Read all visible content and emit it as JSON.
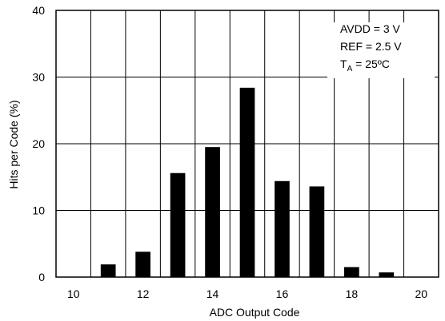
{
  "chart_data": {
    "type": "bar",
    "x": [
      10,
      11,
      12,
      13,
      14,
      15,
      16,
      17,
      18,
      19,
      20
    ],
    "values": [
      0,
      1.9,
      3.8,
      15.6,
      19.5,
      28.4,
      14.4,
      13.6,
      1.5,
      0.7,
      0
    ],
    "xlabel": "ADC Output Code",
    "ylabel": "Hits per Code (%)",
    "xlim": [
      9.5,
      20.5
    ],
    "ylim": [
      0,
      40
    ],
    "xticks": [
      10,
      12,
      14,
      16,
      18,
      20
    ],
    "yticks": [
      0,
      10,
      20,
      30,
      40
    ],
    "grid": true,
    "bar_color": "#000000",
    "annotations": {
      "line1": "AVDD = 3 V",
      "line2": "REF = 2.5 V",
      "line3_main": "T",
      "line3_sub": "A",
      "line3_rest": " = 25ºC"
    }
  }
}
